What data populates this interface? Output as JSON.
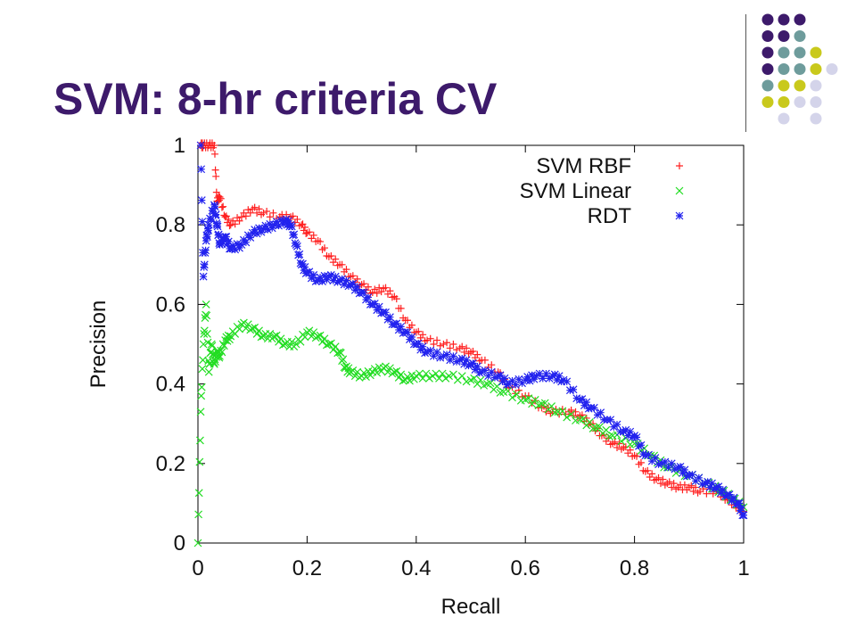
{
  "slide": {
    "title": "SVM: 8-hr criteria CV"
  },
  "decoration": {
    "dot_colors": {
      "purple": "#3d1a6b",
      "teal": "#6e9c9c",
      "olive": "#c9c91c",
      "lavender": "#d4d4ea"
    },
    "dot_grid": [
      [
        "purple",
        "purple",
        "purple",
        "",
        ""
      ],
      [
        "purple",
        "purple",
        "teal",
        "",
        ""
      ],
      [
        "purple",
        "teal",
        "teal",
        "olive",
        ""
      ],
      [
        "purple",
        "teal",
        "teal",
        "olive",
        "lavender"
      ],
      [
        "teal",
        "olive",
        "olive",
        "lavender",
        ""
      ],
      [
        "olive",
        "olive",
        "lavender",
        "lavender",
        ""
      ],
      [
        "",
        "lavender",
        "",
        "lavender",
        ""
      ]
    ]
  },
  "chart_data": {
    "type": "scatter",
    "xlabel": "Recall",
    "ylabel": "Precision",
    "xlim": [
      0,
      1
    ],
    "ylim": [
      0,
      1
    ],
    "xticks": [
      {
        "v": 0,
        "label": "0"
      },
      {
        "v": 0.2,
        "label": "0.2"
      },
      {
        "v": 0.4,
        "label": "0.4"
      },
      {
        "v": 0.6,
        "label": "0.6"
      },
      {
        "v": 0.8,
        "label": "0.8"
      },
      {
        "v": 1,
        "label": "1"
      }
    ],
    "yticks": [
      {
        "v": 0,
        "label": "0"
      },
      {
        "v": 0.2,
        "label": "0.2"
      },
      {
        "v": 0.4,
        "label": "0.4"
      },
      {
        "v": 0.6,
        "label": "0.6"
      },
      {
        "v": 0.8,
        "label": "0.8"
      },
      {
        "v": 1,
        "label": "1"
      }
    ],
    "grid": false,
    "legend_position": "top-right",
    "series": [
      {
        "name": "SVM RBF",
        "color": "#ff2020",
        "marker": "plus",
        "points": [
          [
            0.005,
            1.0
          ],
          [
            0.01,
            1.0
          ],
          [
            0.02,
            1.0
          ],
          [
            0.03,
            1.0
          ],
          [
            0.035,
            0.86
          ],
          [
            0.04,
            0.87
          ],
          [
            0.05,
            0.82
          ],
          [
            0.06,
            0.8
          ],
          [
            0.08,
            0.82
          ],
          [
            0.1,
            0.84
          ],
          [
            0.12,
            0.83
          ],
          [
            0.15,
            0.82
          ],
          [
            0.17,
            0.82
          ],
          [
            0.19,
            0.8
          ],
          [
            0.2,
            0.78
          ],
          [
            0.22,
            0.76
          ],
          [
            0.24,
            0.72
          ],
          [
            0.26,
            0.7
          ],
          [
            0.28,
            0.67
          ],
          [
            0.3,
            0.65
          ],
          [
            0.32,
            0.63
          ],
          [
            0.34,
            0.64
          ],
          [
            0.36,
            0.62
          ],
          [
            0.38,
            0.56
          ],
          [
            0.4,
            0.53
          ],
          [
            0.42,
            0.51
          ],
          [
            0.45,
            0.5
          ],
          [
            0.48,
            0.49
          ],
          [
            0.5,
            0.48
          ],
          [
            0.52,
            0.46
          ],
          [
            0.55,
            0.43
          ],
          [
            0.57,
            0.39
          ],
          [
            0.6,
            0.37
          ],
          [
            0.63,
            0.34
          ],
          [
            0.65,
            0.33
          ],
          [
            0.68,
            0.33
          ],
          [
            0.7,
            0.32
          ],
          [
            0.72,
            0.3
          ],
          [
            0.74,
            0.27
          ],
          [
            0.76,
            0.25
          ],
          [
            0.78,
            0.24
          ],
          [
            0.8,
            0.22
          ],
          [
            0.82,
            0.18
          ],
          [
            0.84,
            0.16
          ],
          [
            0.86,
            0.15
          ],
          [
            0.88,
            0.14
          ],
          [
            0.9,
            0.14
          ],
          [
            0.92,
            0.13
          ],
          [
            0.95,
            0.13
          ],
          [
            0.97,
            0.11
          ],
          [
            0.99,
            0.09
          ],
          [
            1.0,
            0.08
          ]
        ]
      },
      {
        "name": "SVM Linear",
        "color": "#22dd22",
        "marker": "cross",
        "points": [
          [
            0.0,
            0.0
          ],
          [
            0.005,
            0.33
          ],
          [
            0.01,
            0.5
          ],
          [
            0.015,
            0.6
          ],
          [
            0.02,
            0.43
          ],
          [
            0.025,
            0.5
          ],
          [
            0.03,
            0.45
          ],
          [
            0.035,
            0.48
          ],
          [
            0.04,
            0.47
          ],
          [
            0.05,
            0.51
          ],
          [
            0.06,
            0.52
          ],
          [
            0.08,
            0.55
          ],
          [
            0.1,
            0.54
          ],
          [
            0.12,
            0.52
          ],
          [
            0.14,
            0.52
          ],
          [
            0.16,
            0.5
          ],
          [
            0.18,
            0.5
          ],
          [
            0.2,
            0.53
          ],
          [
            0.22,
            0.52
          ],
          [
            0.24,
            0.5
          ],
          [
            0.26,
            0.48
          ],
          [
            0.27,
            0.44
          ],
          [
            0.28,
            0.43
          ],
          [
            0.3,
            0.42
          ],
          [
            0.32,
            0.43
          ],
          [
            0.34,
            0.44
          ],
          [
            0.36,
            0.43
          ],
          [
            0.38,
            0.41
          ],
          [
            0.4,
            0.42
          ],
          [
            0.43,
            0.42
          ],
          [
            0.46,
            0.42
          ],
          [
            0.5,
            0.41
          ],
          [
            0.53,
            0.4
          ],
          [
            0.56,
            0.38
          ],
          [
            0.6,
            0.36
          ],
          [
            0.63,
            0.35
          ],
          [
            0.66,
            0.33
          ],
          [
            0.7,
            0.31
          ],
          [
            0.73,
            0.29
          ],
          [
            0.76,
            0.27
          ],
          [
            0.8,
            0.25
          ],
          [
            0.83,
            0.22
          ],
          [
            0.86,
            0.19
          ],
          [
            0.9,
            0.17
          ],
          [
            0.93,
            0.15
          ],
          [
            0.96,
            0.13
          ],
          [
            0.98,
            0.11
          ],
          [
            1.0,
            0.09
          ]
        ]
      },
      {
        "name": "RDT",
        "color": "#2222ee",
        "marker": "star",
        "points": [
          [
            0.005,
            1.0
          ],
          [
            0.01,
            0.67
          ],
          [
            0.015,
            0.76
          ],
          [
            0.02,
            0.8
          ],
          [
            0.03,
            0.85
          ],
          [
            0.035,
            0.8
          ],
          [
            0.04,
            0.75
          ],
          [
            0.05,
            0.77
          ],
          [
            0.06,
            0.74
          ],
          [
            0.08,
            0.75
          ],
          [
            0.1,
            0.78
          ],
          [
            0.12,
            0.79
          ],
          [
            0.14,
            0.8
          ],
          [
            0.16,
            0.81
          ],
          [
            0.17,
            0.8
          ],
          [
            0.18,
            0.75
          ],
          [
            0.19,
            0.7
          ],
          [
            0.2,
            0.68
          ],
          [
            0.22,
            0.66
          ],
          [
            0.24,
            0.67
          ],
          [
            0.26,
            0.66
          ],
          [
            0.28,
            0.65
          ],
          [
            0.3,
            0.63
          ],
          [
            0.32,
            0.6
          ],
          [
            0.34,
            0.58
          ],
          [
            0.36,
            0.55
          ],
          [
            0.38,
            0.53
          ],
          [
            0.4,
            0.5
          ],
          [
            0.42,
            0.48
          ],
          [
            0.45,
            0.47
          ],
          [
            0.48,
            0.46
          ],
          [
            0.5,
            0.45
          ],
          [
            0.52,
            0.43
          ],
          [
            0.55,
            0.42
          ],
          [
            0.57,
            0.4
          ],
          [
            0.6,
            0.41
          ],
          [
            0.62,
            0.42
          ],
          [
            0.65,
            0.42
          ],
          [
            0.67,
            0.41
          ],
          [
            0.7,
            0.36
          ],
          [
            0.72,
            0.34
          ],
          [
            0.75,
            0.31
          ],
          [
            0.78,
            0.28
          ],
          [
            0.8,
            0.27
          ],
          [
            0.82,
            0.22
          ],
          [
            0.85,
            0.2
          ],
          [
            0.88,
            0.19
          ],
          [
            0.9,
            0.17
          ],
          [
            0.93,
            0.15
          ],
          [
            0.95,
            0.14
          ],
          [
            0.97,
            0.12
          ],
          [
            0.99,
            0.1
          ],
          [
            1.0,
            0.07
          ]
        ]
      }
    ]
  }
}
